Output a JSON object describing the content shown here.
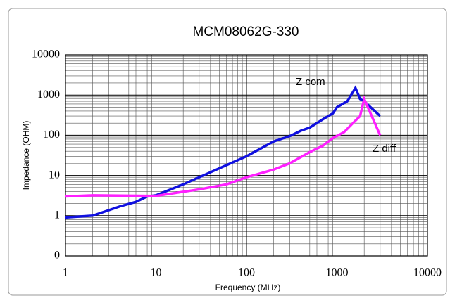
{
  "chart_data": {
    "type": "line",
    "title": "MCM08062G-330",
    "x_label": "Frequency (MHz)",
    "y_label": "Impedance (OHM)",
    "x_scale": "log",
    "y_scale": "log",
    "grid": true,
    "xlim": [
      1,
      10000
    ],
    "xticks": [
      1,
      10,
      100,
      1000,
      10000
    ],
    "ylim": [
      0.1,
      10000
    ],
    "yticks": [
      {
        "value": 0.1,
        "label": "0"
      },
      1,
      10,
      100,
      1000,
      10000
    ],
    "series": [
      {
        "name": "Z com",
        "color": "#1010e0",
        "x": [
          1,
          2,
          4,
          6,
          8,
          10,
          20,
          40,
          60,
          100,
          200,
          300,
          400,
          500,
          700,
          900,
          1000,
          1300,
          1600,
          1800,
          2000,
          3000
        ],
        "values": [
          0.9,
          1.0,
          1.7,
          2.2,
          3.0,
          3.2,
          6,
          12,
          18,
          30,
          70,
          95,
          130,
          155,
          250,
          350,
          500,
          700,
          1500,
          800,
          700,
          300
        ]
      },
      {
        "name": "Z diff",
        "color": "#ff20ff",
        "x": [
          1,
          2,
          10,
          30,
          60,
          100,
          200,
          300,
          500,
          700,
          900,
          1200,
          1500,
          1800,
          2000,
          3000
        ],
        "values": [
          3.0,
          3.2,
          3.1,
          4.5,
          6,
          9,
          14,
          20,
          38,
          55,
          85,
          120,
          200,
          300,
          800,
          100
        ]
      }
    ]
  }
}
